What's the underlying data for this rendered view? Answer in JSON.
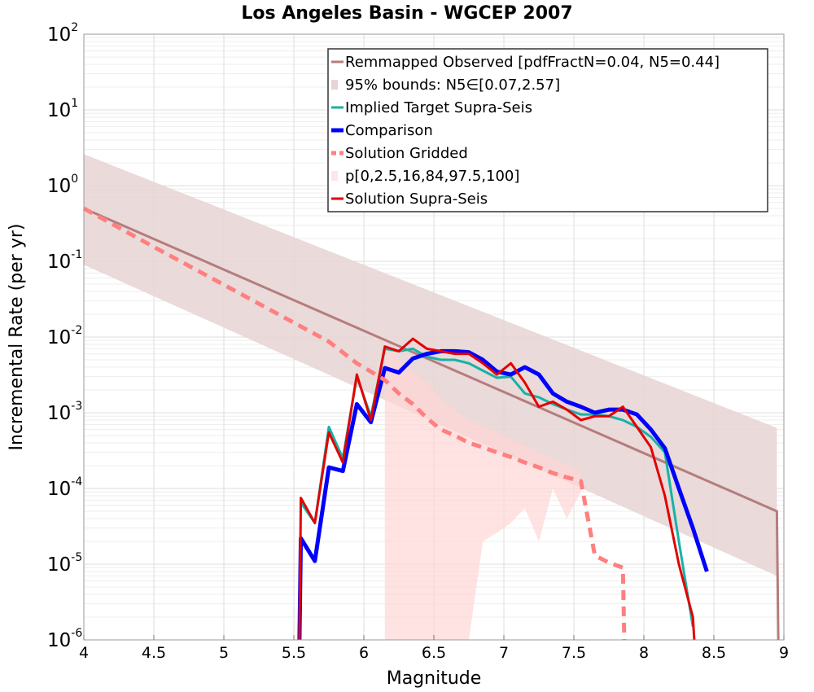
{
  "chart_data": {
    "type": "line",
    "title": "Los Angeles Basin - WGCEP 2007",
    "xlabel": "Magnitude",
    "ylabel": "Incremental Rate (per yr)",
    "xlim": [
      4,
      9
    ],
    "ylim": [
      1e-06,
      100
    ],
    "yscale": "log",
    "grid": true,
    "legend_position": "top-right",
    "xticks": [
      "4",
      "4.5",
      "5",
      "5.5",
      "6",
      "6.5",
      "7",
      "7.5",
      "8",
      "8.5",
      "9"
    ],
    "yticks": [
      {
        "base": "10",
        "exp": "-6"
      },
      {
        "base": "10",
        "exp": "-5"
      },
      {
        "base": "10",
        "exp": "-4"
      },
      {
        "base": "10",
        "exp": "-3"
      },
      {
        "base": "10",
        "exp": "-2"
      },
      {
        "base": "10",
        "exp": "-1"
      },
      {
        "base": "10",
        "exp": "0"
      },
      {
        "base": "10",
        "exp": "1"
      },
      {
        "base": "10",
        "exp": "2"
      }
    ],
    "legend": [
      "Remmapped Observed [pdfFractN=0.04, N5=0.44]",
      "95% bounds: N5∈[0.07,2.57]",
      "Implied Target Supra-Seis",
      "Comparison",
      "Solution Gridded",
      "p[0,2.5,16,84,97.5,100]",
      "Solution Supra-Seis"
    ],
    "series": [
      {
        "name": "Remmapped Observed [pdfFractN=0.04, N5=0.44]",
        "color": "#b67c7c",
        "x": [
          4.0,
          8.95,
          8.96
        ],
        "y": [
          0.5,
          5e-05,
          1e-06
        ]
      },
      {
        "name": "Implied Target Supra-Seis",
        "color": "#17b2a5",
        "x": [
          5.55,
          5.65,
          5.75,
          5.85,
          5.95,
          6.05,
          6.15,
          6.25,
          6.35,
          6.45,
          6.55,
          6.65,
          6.75,
          6.85,
          6.95,
          7.05,
          7.15,
          7.25,
          7.35,
          7.45,
          7.55,
          7.65,
          7.75,
          7.85,
          7.95,
          8.05,
          8.15,
          8.25,
          8.35
        ],
        "y": [
          6.5e-05,
          3.5e-05,
          0.00065,
          0.00025,
          0.003,
          0.0009,
          0.007,
          0.0065,
          0.007,
          0.0055,
          0.005,
          0.005,
          0.0045,
          0.0036,
          0.0029,
          0.003,
          0.0018,
          0.0016,
          0.0013,
          0.0011,
          0.00095,
          0.00095,
          0.0009,
          0.0008,
          0.00065,
          0.00048,
          0.0003,
          2e-05,
          1.5e-06
        ]
      },
      {
        "name": "Comparison",
        "color": "#0000ff",
        "x": [
          5.54,
          5.55,
          5.65,
          5.75,
          5.85,
          5.95,
          6.05,
          6.15,
          6.25,
          6.35,
          6.45,
          6.55,
          6.65,
          6.75,
          6.85,
          6.95,
          7.05,
          7.15,
          7.25,
          7.35,
          7.45,
          7.55,
          7.65,
          7.75,
          7.85,
          7.95,
          8.05,
          8.15,
          8.25,
          8.35,
          8.45
        ],
        "y": [
          1e-06,
          2.2e-05,
          1.1e-05,
          0.00019,
          0.00017,
          0.0013,
          0.00075,
          0.0039,
          0.0034,
          0.0052,
          0.006,
          0.0065,
          0.0065,
          0.0063,
          0.005,
          0.0035,
          0.0032,
          0.004,
          0.0032,
          0.0018,
          0.0014,
          0.0012,
          0.001,
          0.0011,
          0.0011,
          0.00095,
          0.0006,
          0.00034,
          0.0001,
          3e-05,
          8e-06
        ]
      },
      {
        "name": "Solution Gridded",
        "color": "#ff7f7f",
        "x": [
          4.0,
          4.5,
          5.0,
          5.5,
          5.75,
          5.95,
          6.05,
          6.15,
          6.25,
          6.35,
          6.45,
          6.55,
          6.65,
          6.75,
          6.85,
          6.95,
          7.05,
          7.15,
          7.25,
          7.35,
          7.45,
          7.55,
          7.65,
          7.75,
          7.85,
          7.86
        ],
        "y": [
          0.5,
          0.155,
          0.049,
          0.0155,
          0.0087,
          0.0045,
          0.0035,
          0.0027,
          0.0018,
          0.0013,
          0.00085,
          0.0006,
          0.0005,
          0.0004,
          0.00035,
          0.0003,
          0.00026,
          0.00022,
          0.00019,
          0.00016,
          0.00014,
          0.000125,
          1.3e-05,
          1.05e-05,
          9e-06,
          1e-06
        ]
      },
      {
        "name": "Solution Supra-Seis",
        "color": "#e50000",
        "x": [
          5.54,
          5.55,
          5.65,
          5.75,
          5.85,
          5.95,
          6.05,
          6.15,
          6.25,
          6.35,
          6.45,
          6.55,
          6.65,
          6.75,
          6.85,
          6.95,
          7.05,
          7.15,
          7.25,
          7.35,
          7.45,
          7.55,
          7.65,
          7.75,
          7.85,
          7.95,
          8.05,
          8.15,
          8.25,
          8.35,
          8.36
        ],
        "y": [
          1e-06,
          7.5e-05,
          3.5e-05,
          0.00055,
          0.00022,
          0.0032,
          0.0008,
          0.0075,
          0.0065,
          0.0095,
          0.007,
          0.0065,
          0.006,
          0.006,
          0.0045,
          0.0032,
          0.0045,
          0.0025,
          0.0012,
          0.0014,
          0.0011,
          0.0008,
          0.0009,
          0.0009,
          0.0012,
          0.00065,
          0.00035,
          8e-05,
          1e-05,
          2e-06,
          1e-06
        ]
      }
    ],
    "bands": [
      {
        "name": "95% bounds: N5∈[0.07,2.57]",
        "color": "#e6d4d4",
        "x": [
          4.0,
          8.95
        ],
        "lower": [
          0.09,
          7e-06
        ],
        "upper": [
          2.6,
          0.00063
        ]
      },
      {
        "name": "p[0,2.5,16,84,97.5,100]",
        "color": "#ffd6d6",
        "x": [
          6.15,
          6.25,
          6.35,
          6.45,
          6.55,
          6.65,
          6.75,
          6.85,
          6.95,
          7.05,
          7.15,
          7.25,
          7.35,
          7.45,
          7.55
        ],
        "lower": [
          1e-06,
          1e-06,
          1e-06,
          1e-06,
          1e-06,
          1e-06,
          1e-06,
          2e-05,
          2.6e-05,
          3.5e-05,
          5.5e-05,
          2e-05,
          0.0001,
          4e-05,
          9e-05
        ],
        "upper": [
          0.01,
          0.005,
          0.0035,
          0.0025,
          0.0015,
          0.0011,
          0.0008,
          0.00065,
          0.00055,
          0.00045,
          0.00037,
          0.0003,
          0.00025,
          0.00021,
          0.00016
        ]
      }
    ]
  }
}
